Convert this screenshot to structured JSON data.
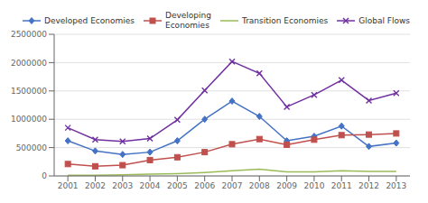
{
  "chart_data": {
    "type": "line",
    "x": [
      2001,
      2002,
      2003,
      2004,
      2005,
      2006,
      2007,
      2008,
      2009,
      2010,
      2011,
      2012,
      2013
    ],
    "series": [
      {
        "name": "Developed Economies",
        "color": "#4472C4",
        "marker": "diamond",
        "values": [
          620000,
          440000,
          380000,
          420000,
          620000,
          1000000,
          1320000,
          1050000,
          620000,
          700000,
          880000,
          520000,
          580000
        ]
      },
      {
        "name": "Developing\nEconomies",
        "color": "#C0504D",
        "marker": "square",
        "values": [
          210000,
          170000,
          190000,
          280000,
          330000,
          420000,
          560000,
          650000,
          550000,
          640000,
          720000,
          730000,
          750000
        ]
      },
      {
        "name": "Transition Economies",
        "color": "#9BBB59",
        "marker": "none",
        "values": [
          10000,
          10000,
          20000,
          30000,
          40000,
          60000,
          90000,
          120000,
          70000,
          70000,
          90000,
          80000,
          80000
        ]
      },
      {
        "name": "Global Flows",
        "color": "#7030A0",
        "marker": "x",
        "values": [
          850000,
          640000,
          610000,
          660000,
          990000,
          1510000,
          2020000,
          1810000,
          1220000,
          1430000,
          1690000,
          1330000,
          1460000
        ]
      }
    ],
    "xlim": [
      2000.5,
      2013.5
    ],
    "xticks": [
      2001,
      2002,
      2003,
      2004,
      2005,
      2006,
      2007,
      2008,
      2009,
      2010,
      2011,
      2012,
      2013
    ],
    "ylim": [
      0,
      2500000
    ],
    "yticks": [
      0,
      500000,
      1000000,
      1500000,
      2000000,
      2500000
    ],
    "grid": true,
    "legend": "upper right"
  }
}
